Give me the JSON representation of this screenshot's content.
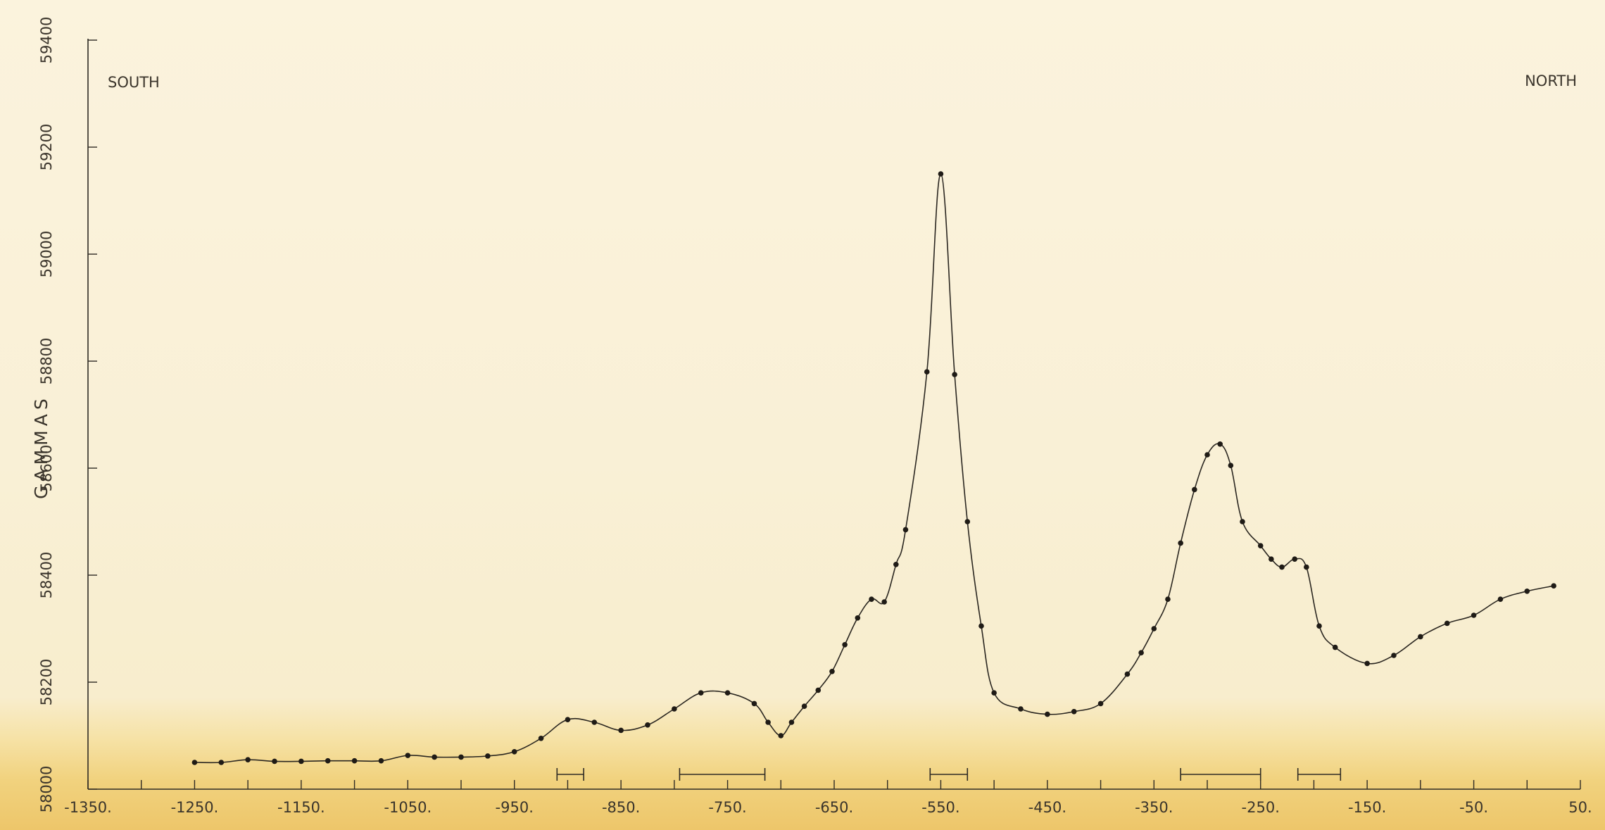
{
  "chart_data": {
    "type": "line",
    "title": "",
    "xlabel": "",
    "ylabel": "GAMMAS",
    "xlim": [
      -1350,
      50
    ],
    "ylim": [
      58000,
      59400
    ],
    "x_ticks": [
      -1350,
      -1300,
      -1250,
      -1200,
      -1150,
      -1100,
      -1050,
      -1000,
      -950,
      -900,
      -850,
      -800,
      -750,
      -700,
      -650,
      -600,
      -550,
      -500,
      -450,
      -400,
      -350,
      -300,
      -250,
      -200,
      -150,
      -100,
      -50,
      0,
      50
    ],
    "x_tick_labels": [
      {
        "value": -1350,
        "label": "-1350."
      },
      {
        "value": -1250,
        "label": "-1250."
      },
      {
        "value": -1150,
        "label": "-1150."
      },
      {
        "value": -1050,
        "label": "-1050."
      },
      {
        "value": -950,
        "label": "-950."
      },
      {
        "value": -850,
        "label": "-850."
      },
      {
        "value": -750,
        "label": "-750."
      },
      {
        "value": -650,
        "label": "-650."
      },
      {
        "value": -550,
        "label": "-550."
      },
      {
        "value": -450,
        "label": "-450."
      },
      {
        "value": -350,
        "label": "-350."
      },
      {
        "value": -250,
        "label": "-250."
      },
      {
        "value": -150,
        "label": "-150."
      },
      {
        "value": -50,
        "label": "-50."
      },
      {
        "value": 50,
        "label": "50."
      }
    ],
    "y_ticks": [
      58000,
      58200,
      58400,
      58600,
      58800,
      59000,
      59200,
      59400
    ],
    "y_tick_labels": [
      "58000",
      "58200",
      "58400",
      "58600",
      "58800",
      "59000",
      "59200",
      "59400"
    ],
    "annotations": {
      "left": "SOUTH",
      "right": "NORTH"
    },
    "grid": false,
    "legend": "none",
    "series": [
      {
        "x": [
          -1250,
          -1225,
          -1200,
          -1175,
          -1150,
          -1125,
          -1100,
          -1075,
          -1050,
          -1025,
          -1000,
          -975,
          -950,
          -925,
          -900,
          -875,
          -850,
          -825,
          -800,
          -775,
          -750,
          -725,
          -712,
          -700,
          -690,
          -678,
          -665,
          -652,
          -640,
          -628,
          -615,
          -603,
          -592,
          -583,
          -563,
          -550,
          -537,
          -525,
          -512,
          -500,
          -475,
          -450,
          -425,
          -400,
          -375,
          -362,
          -350,
          -337,
          -325,
          -312,
          -300,
          -288,
          -278,
          -267,
          -250,
          -240,
          -230,
          -218,
          -207,
          -195,
          -180,
          -150,
          -125,
          -100,
          -75,
          -50,
          -25,
          0,
          25
        ],
        "y": [
          58050,
          58050,
          58055,
          58052,
          58052,
          58053,
          58053,
          58053,
          58063,
          58060,
          58060,
          58062,
          58070,
          58095,
          58130,
          58125,
          58110,
          58120,
          58150,
          58180,
          58180,
          58160,
          58125,
          58100,
          58125,
          58155,
          58185,
          58220,
          58270,
          58320,
          58355,
          58350,
          58420,
          58485,
          58780,
          59150,
          58775,
          58500,
          58305,
          58180,
          58150,
          58140,
          58145,
          58160,
          58215,
          58255,
          58300,
          58355,
          58460,
          58560,
          58625,
          58645,
          58605,
          58500,
          58455,
          58430,
          58415,
          58430,
          58415,
          58305,
          58265,
          58235,
          58250,
          58285,
          58310,
          58325,
          58355,
          58370,
          58380
        ]
      }
    ],
    "intervals": [
      {
        "from": -910,
        "to": -885
      },
      {
        "from": -795,
        "to": -715
      },
      {
        "from": -560,
        "to": -525
      },
      {
        "from": -325,
        "to": -250
      },
      {
        "from": -215,
        "to": -175
      }
    ]
  }
}
